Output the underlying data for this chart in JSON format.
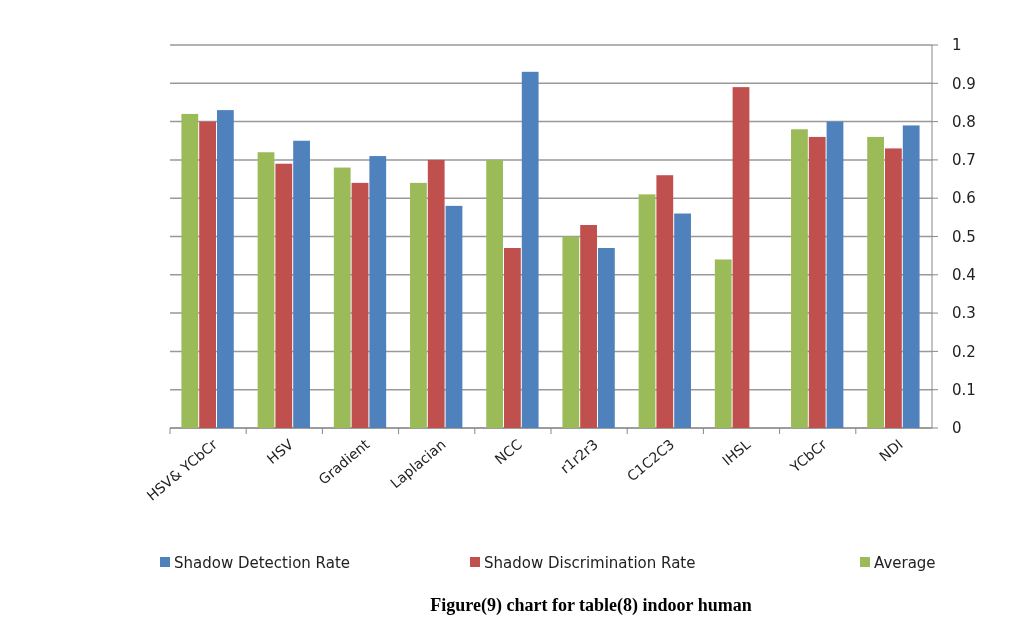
{
  "chart_data": {
    "type": "bar",
    "title": "Figure(9) chart for table(8) indoor human",
    "categories": [
      "HSV& YCbCr",
      "HSV",
      "Gradient",
      "Laplacian",
      "NCC",
      "r1r2r3",
      "C1C2C3",
      "IHSL",
      "YCbCr",
      "NDI"
    ],
    "series": [
      {
        "name": "Average",
        "color": "#9bbb59",
        "values": [
          0.82,
          0.72,
          0.68,
          0.64,
          0.7,
          0.5,
          0.61,
          0.44,
          0.78,
          0.76
        ]
      },
      {
        "name": "Shadow Discrimination  Rate",
        "color": "#c0504d",
        "values": [
          0.8,
          0.69,
          0.64,
          0.7,
          0.47,
          0.53,
          0.66,
          0.89,
          0.76,
          0.73
        ]
      },
      {
        "name": "Shadow Detection Rate",
        "color": "#4f81bd",
        "values": [
          0.83,
          0.75,
          0.71,
          0.58,
          0.93,
          0.47,
          0.56,
          0,
          0.8,
          0.79
        ]
      }
    ],
    "ylim": [
      0,
      1
    ],
    "yticks": [
      0,
      0.1,
      0.2,
      0.3,
      0.4,
      0.5,
      0.6,
      0.7,
      0.8,
      0.9,
      1
    ],
    "grid": "y",
    "legend": "bottom"
  }
}
